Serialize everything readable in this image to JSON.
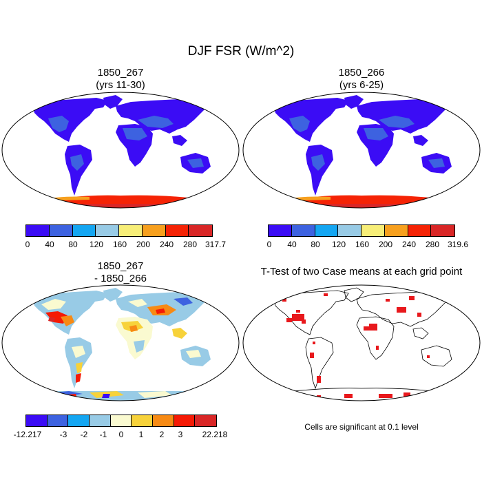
{
  "title": "DJF FSR (W/m^2)",
  "panels": {
    "top_left": {
      "title_line1": "1850_267",
      "title_line2": "(yrs 11-30)"
    },
    "top_right": {
      "title_line1": "1850_266",
      "title_line2": "(yrs 6-25)"
    },
    "bottom_left": {
      "title_line1": "1850_267",
      "title_line2": "- 1850_266"
    },
    "bottom_right": {
      "title_line1": "T-Test of two Case means at each grid point"
    }
  },
  "colorbars": {
    "cb1": {
      "labels": [
        "0",
        "40",
        "80",
        "120",
        "160",
        "200",
        "240",
        "280",
        "317.7"
      ],
      "colors": [
        "#3b0cf5",
        "#3d62e0",
        "#14a6f2",
        "#98cbe6",
        "#f7ee78",
        "#f7a01e",
        "#f52305",
        "#d92626"
      ]
    },
    "cb2": {
      "labels": [
        "0",
        "40",
        "80",
        "120",
        "160",
        "200",
        "240",
        "280",
        "319.6"
      ],
      "colors": [
        "#3b0cf5",
        "#3d62e0",
        "#14a6f2",
        "#98cbe6",
        "#f7ee78",
        "#f7a01e",
        "#f52305",
        "#d92626"
      ]
    },
    "cb3": {
      "labels": [
        "-12.217",
        "-3",
        "-2",
        "-1",
        "0",
        "1",
        "2",
        "3",
        "22.218"
      ],
      "colors": [
        "#3b0cf5",
        "#3d62e0",
        "#14a6f2",
        "#98cbe6",
        "#fafad0",
        "#f7d23a",
        "#f78a14",
        "#f51a05",
        "#d92626"
      ]
    }
  },
  "note": "Cells are significant at 0.1 level",
  "colors": {
    "ocean": "#ffffff",
    "land_dark": "#3b0cf5",
    "land_mid": "#3d62e0",
    "ttest": "#e8181c"
  }
}
